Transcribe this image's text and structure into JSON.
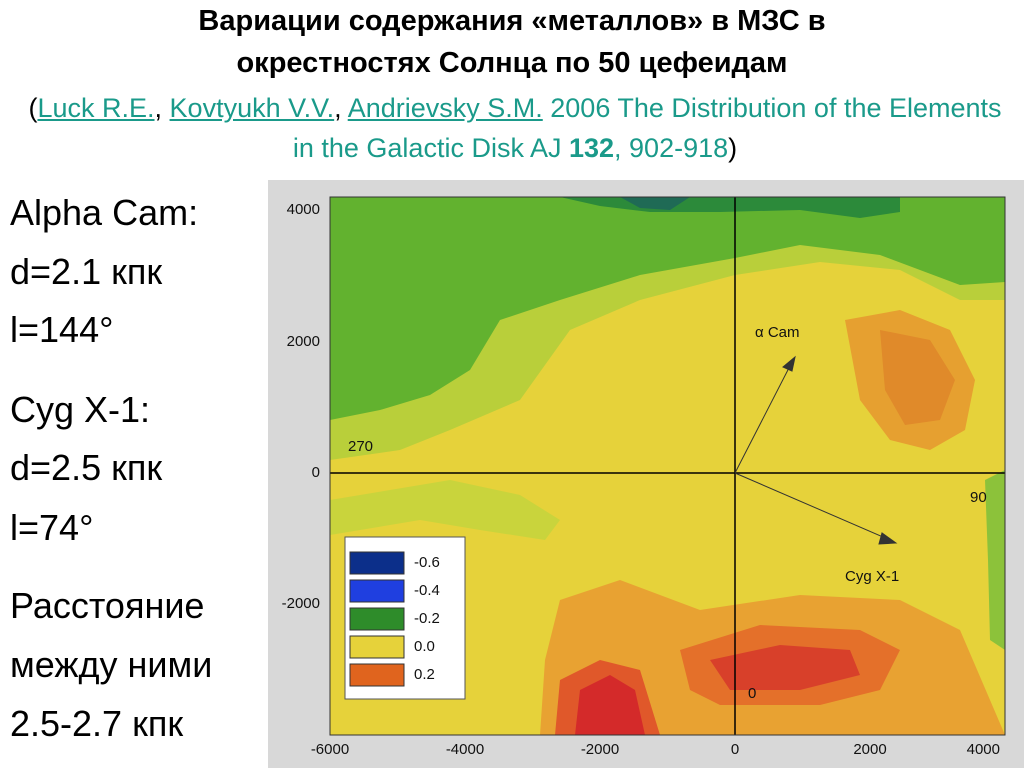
{
  "header": {
    "title_line1": "Вариации содержания «металлов» в МЗС в",
    "title_line2": "окрестностях Солнца  по 50 цефеидам"
  },
  "citation": {
    "prefix": "(",
    "authors": [
      "Luck R.E.",
      "Kovtyukh V.V.",
      "Andrievsky S.M."
    ],
    "separator": ",",
    "details": " 2006 The Distribution of the Elements in the Galactic Disk AJ ",
    "volume": "132",
    "pages": ", 902-918",
    "suffix": ")"
  },
  "notes": [
    [
      "Alpha Cam:",
      "d=2.1 кпк",
      "l=144°"
    ],
    [
      "Cyg X-1:",
      "d=2.5 кпк",
      "l=74°"
    ],
    [
      "Расстояние",
      "между ними",
      "2.5-2.7 кпк"
    ]
  ],
  "map": {
    "yticks": [
      "4000",
      "2000",
      "0",
      "-2000"
    ],
    "xticks": [
      "-6000",
      "-4000",
      "-2000",
      "0",
      "2000",
      "4000"
    ],
    "directions": {
      "left": "270",
      "right": "90",
      "bottom": "0"
    },
    "targets": [
      "α Cam",
      "Cyg X-1"
    ],
    "legend": [
      "-0.6",
      "-0.4",
      "-0.2",
      "0.0",
      "0.2"
    ]
  }
}
